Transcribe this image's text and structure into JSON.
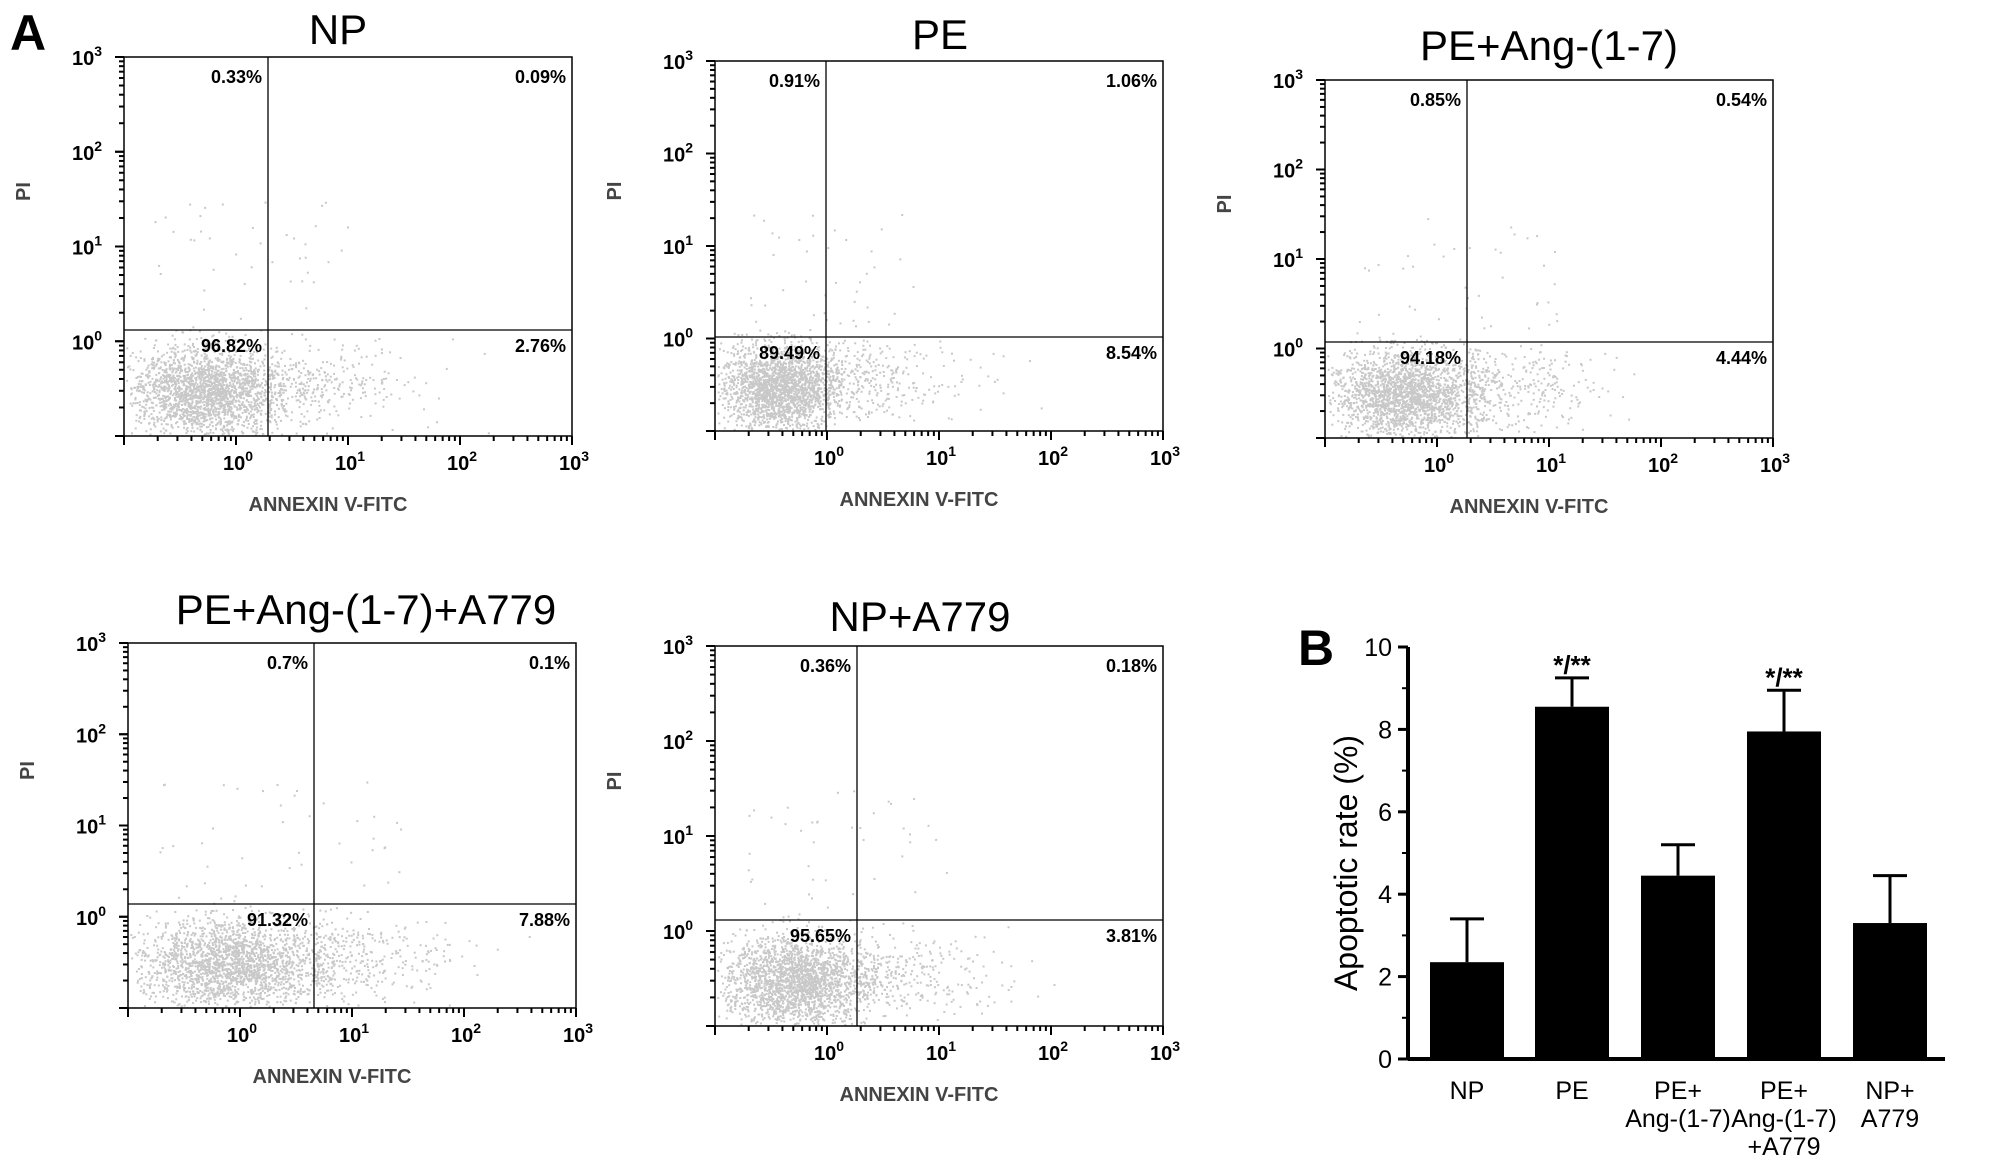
{
  "panel_letters": {
    "a": "A",
    "b": "B"
  },
  "flow_common": {
    "xlabel": "ANNEXIN V-FITC",
    "ylabel": "PI",
    "tick_mantissa": "10",
    "tick_exponents": [
      "0",
      "1",
      "2",
      "3"
    ],
    "dot_color": "#c8c8c8"
  },
  "chart_data": [
    {
      "type": "scatter",
      "title": "NP",
      "xlabel": "ANNEXIN V-FITC",
      "ylabel": "PI",
      "scale": "log",
      "xlim": [
        0.1,
        1000
      ],
      "ylim": [
        0.1,
        1000
      ],
      "quadrants": {
        "upper_left": "0.33%",
        "upper_right": "0.09%",
        "lower_left": "96.82%",
        "lower_right": "2.76%"
      }
    },
    {
      "type": "scatter",
      "title": "PE",
      "xlabel": "ANNEXIN V-FITC",
      "ylabel": "PI",
      "scale": "log",
      "xlim": [
        0.1,
        1000
      ],
      "ylim": [
        0.1,
        1000
      ],
      "quadrants": {
        "upper_left": "0.91%",
        "upper_right": "1.06%",
        "lower_left": "89.49%",
        "lower_right": "8.54%"
      }
    },
    {
      "type": "scatter",
      "title": "PE+Ang-(1-7)",
      "xlabel": "ANNEXIN V-FITC",
      "ylabel": "PI",
      "scale": "log",
      "xlim": [
        0.1,
        1000
      ],
      "ylim": [
        0.1,
        1000
      ],
      "quadrants": {
        "upper_left": "0.85%",
        "upper_right": "0.54%",
        "lower_left": "94.18%",
        "lower_right": "4.44%"
      }
    },
    {
      "type": "scatter",
      "title": "PE+Ang-(1-7)+A779",
      "xlabel": "ANNEXIN V-FITC",
      "ylabel": "PI",
      "scale": "log",
      "xlim": [
        0.1,
        1000
      ],
      "ylim": [
        0.1,
        1000
      ],
      "quadrants": {
        "upper_left": "0.7%",
        "upper_right": "0.1%",
        "lower_left": "91.32%",
        "lower_right": "7.88%"
      }
    },
    {
      "type": "scatter",
      "title": "NP+A779",
      "xlabel": "ANNEXIN V-FITC",
      "ylabel": "PI",
      "scale": "log",
      "xlim": [
        0.1,
        1000
      ],
      "ylim": [
        0.1,
        1000
      ],
      "quadrants": {
        "upper_left": "0.36%",
        "upper_right": "0.18%",
        "lower_left": "95.65%",
        "lower_right": "3.81%"
      }
    },
    {
      "type": "bar",
      "ylabel": "Apoptotic rate (%)",
      "ylim": [
        0,
        10
      ],
      "yticks": [
        "0",
        "2",
        "4",
        "6",
        "8",
        "10"
      ],
      "categories": [
        [
          "NP"
        ],
        [
          "PE"
        ],
        [
          "PE+",
          "Ang-(1-7)"
        ],
        [
          "PE+",
          "Ang-(1-7)",
          "+A779"
        ],
        [
          "NP+",
          "A779"
        ]
      ],
      "values": [
        2.35,
        8.55,
        4.45,
        7.95,
        3.3
      ],
      "errors": [
        1.05,
        0.7,
        0.75,
        1.0,
        1.15
      ],
      "annotations": [
        "",
        "*/**",
        "",
        "*/**",
        ""
      ],
      "bar_color": "#000000"
    }
  ]
}
